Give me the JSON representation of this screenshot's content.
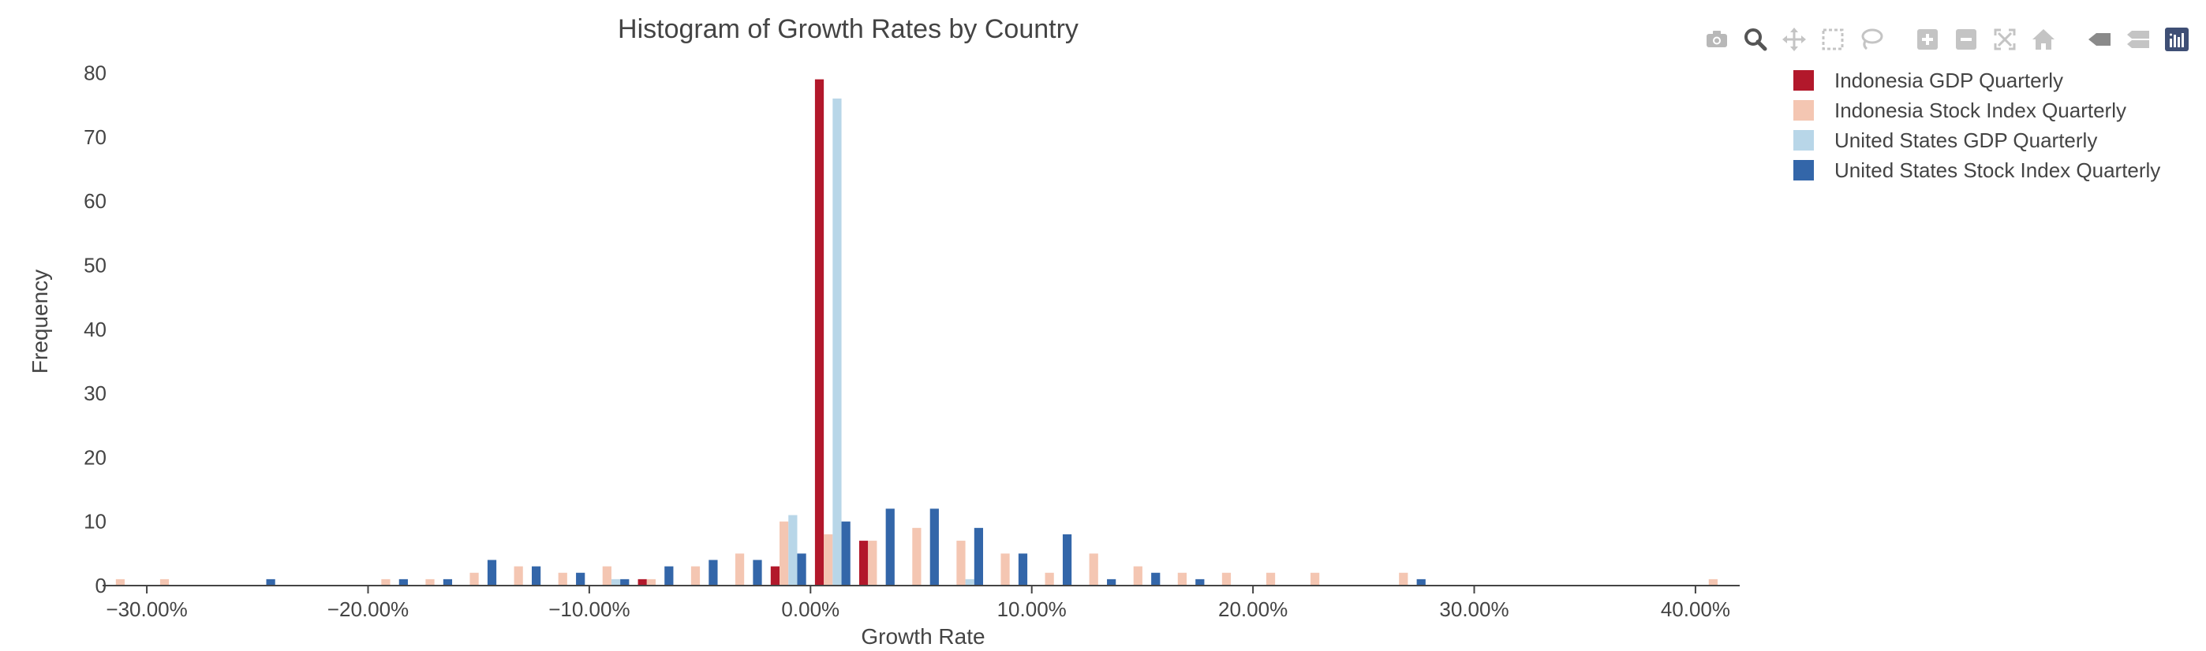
{
  "chart_data": {
    "type": "bar",
    "title": "Histogram of Growth Rates by Country",
    "xlabel": "Growth Rate",
    "ylabel": "Frequency",
    "xlim": [
      -0.32,
      0.42
    ],
    "ylim": [
      0,
      84
    ],
    "x_ticks": [
      -0.3,
      -0.2,
      -0.1,
      0,
      0.1,
      0.2,
      0.3,
      0.4
    ],
    "x_tick_labels": [
      "−30.00%",
      "−20.00%",
      "−10.00%",
      "0.00%",
      "10.00%",
      "20.00%",
      "30.00%",
      "40.00%"
    ],
    "y_ticks": [
      0,
      10,
      20,
      30,
      40,
      50,
      60,
      70,
      80
    ],
    "y_tick_labels": [
      "0",
      "10",
      "20",
      "30",
      "40",
      "50",
      "60",
      "70",
      "80"
    ],
    "bin_width": 0.02,
    "bin_starts": [
      -0.32,
      -0.3,
      -0.28,
      -0.26,
      -0.24,
      -0.22,
      -0.2,
      -0.18,
      -0.16,
      -0.14,
      -0.12,
      -0.1,
      -0.08,
      -0.06,
      -0.04,
      -0.02,
      0.0,
      0.02,
      0.04,
      0.06,
      0.08,
      0.1,
      0.12,
      0.14,
      0.16,
      0.18,
      0.2,
      0.22,
      0.24,
      0.26,
      0.28,
      0.3,
      0.32,
      0.34,
      0.36,
      0.38,
      0.4
    ],
    "series": [
      {
        "name": "Indonesia GDP Quarterly",
        "color": "#b2182b",
        "values": [
          0,
          0,
          0,
          0,
          0,
          0,
          0,
          0,
          0,
          0,
          0,
          0,
          1,
          0,
          0,
          3,
          79,
          7,
          0,
          0,
          0,
          0,
          0,
          0,
          0,
          0,
          0,
          0,
          0,
          0,
          0,
          0,
          0,
          0,
          0,
          0,
          0
        ]
      },
      {
        "name": "Indonesia Stock Index Quarterly",
        "color": "#f4c6b2",
        "values": [
          1,
          1,
          0,
          0,
          0,
          0,
          1,
          1,
          2,
          3,
          2,
          3,
          1,
          3,
          5,
          10,
          8,
          7,
          9,
          7,
          5,
          2,
          5,
          3,
          2,
          2,
          2,
          2,
          0,
          2,
          0,
          0,
          0,
          0,
          0,
          0,
          1
        ]
      },
      {
        "name": "United States GDP Quarterly",
        "color": "#b8d6e8",
        "values": [
          0,
          0,
          0,
          0,
          0,
          0,
          0,
          0,
          0,
          0,
          0,
          1,
          0,
          0,
          0,
          11,
          76,
          0,
          0,
          1,
          0,
          0,
          0,
          0,
          0,
          0,
          0,
          0,
          0,
          0,
          0,
          0,
          0,
          0,
          0,
          0,
          0
        ]
      },
      {
        "name": "United States Stock Index Quarterly",
        "color": "#3366a9",
        "values": [
          0,
          0,
          0,
          1,
          0,
          0,
          1,
          1,
          4,
          3,
          2,
          1,
          3,
          4,
          4,
          5,
          10,
          12,
          12,
          9,
          5,
          8,
          1,
          2,
          1,
          0,
          0,
          0,
          0,
          1,
          0,
          0,
          0,
          0,
          0,
          0,
          0
        ]
      }
    ],
    "legend_position": "top-right",
    "grid": false
  },
  "modebar": {
    "icons": [
      "camera-icon",
      "zoom-icon",
      "pan-icon",
      "box-select-icon",
      "lasso-select-icon",
      "zoom-in-icon",
      "zoom-out-icon",
      "autoscale-icon",
      "reset-axes-icon",
      "spike-lines-icon",
      "compare-hover-icon",
      "plotly-logo-icon"
    ]
  }
}
